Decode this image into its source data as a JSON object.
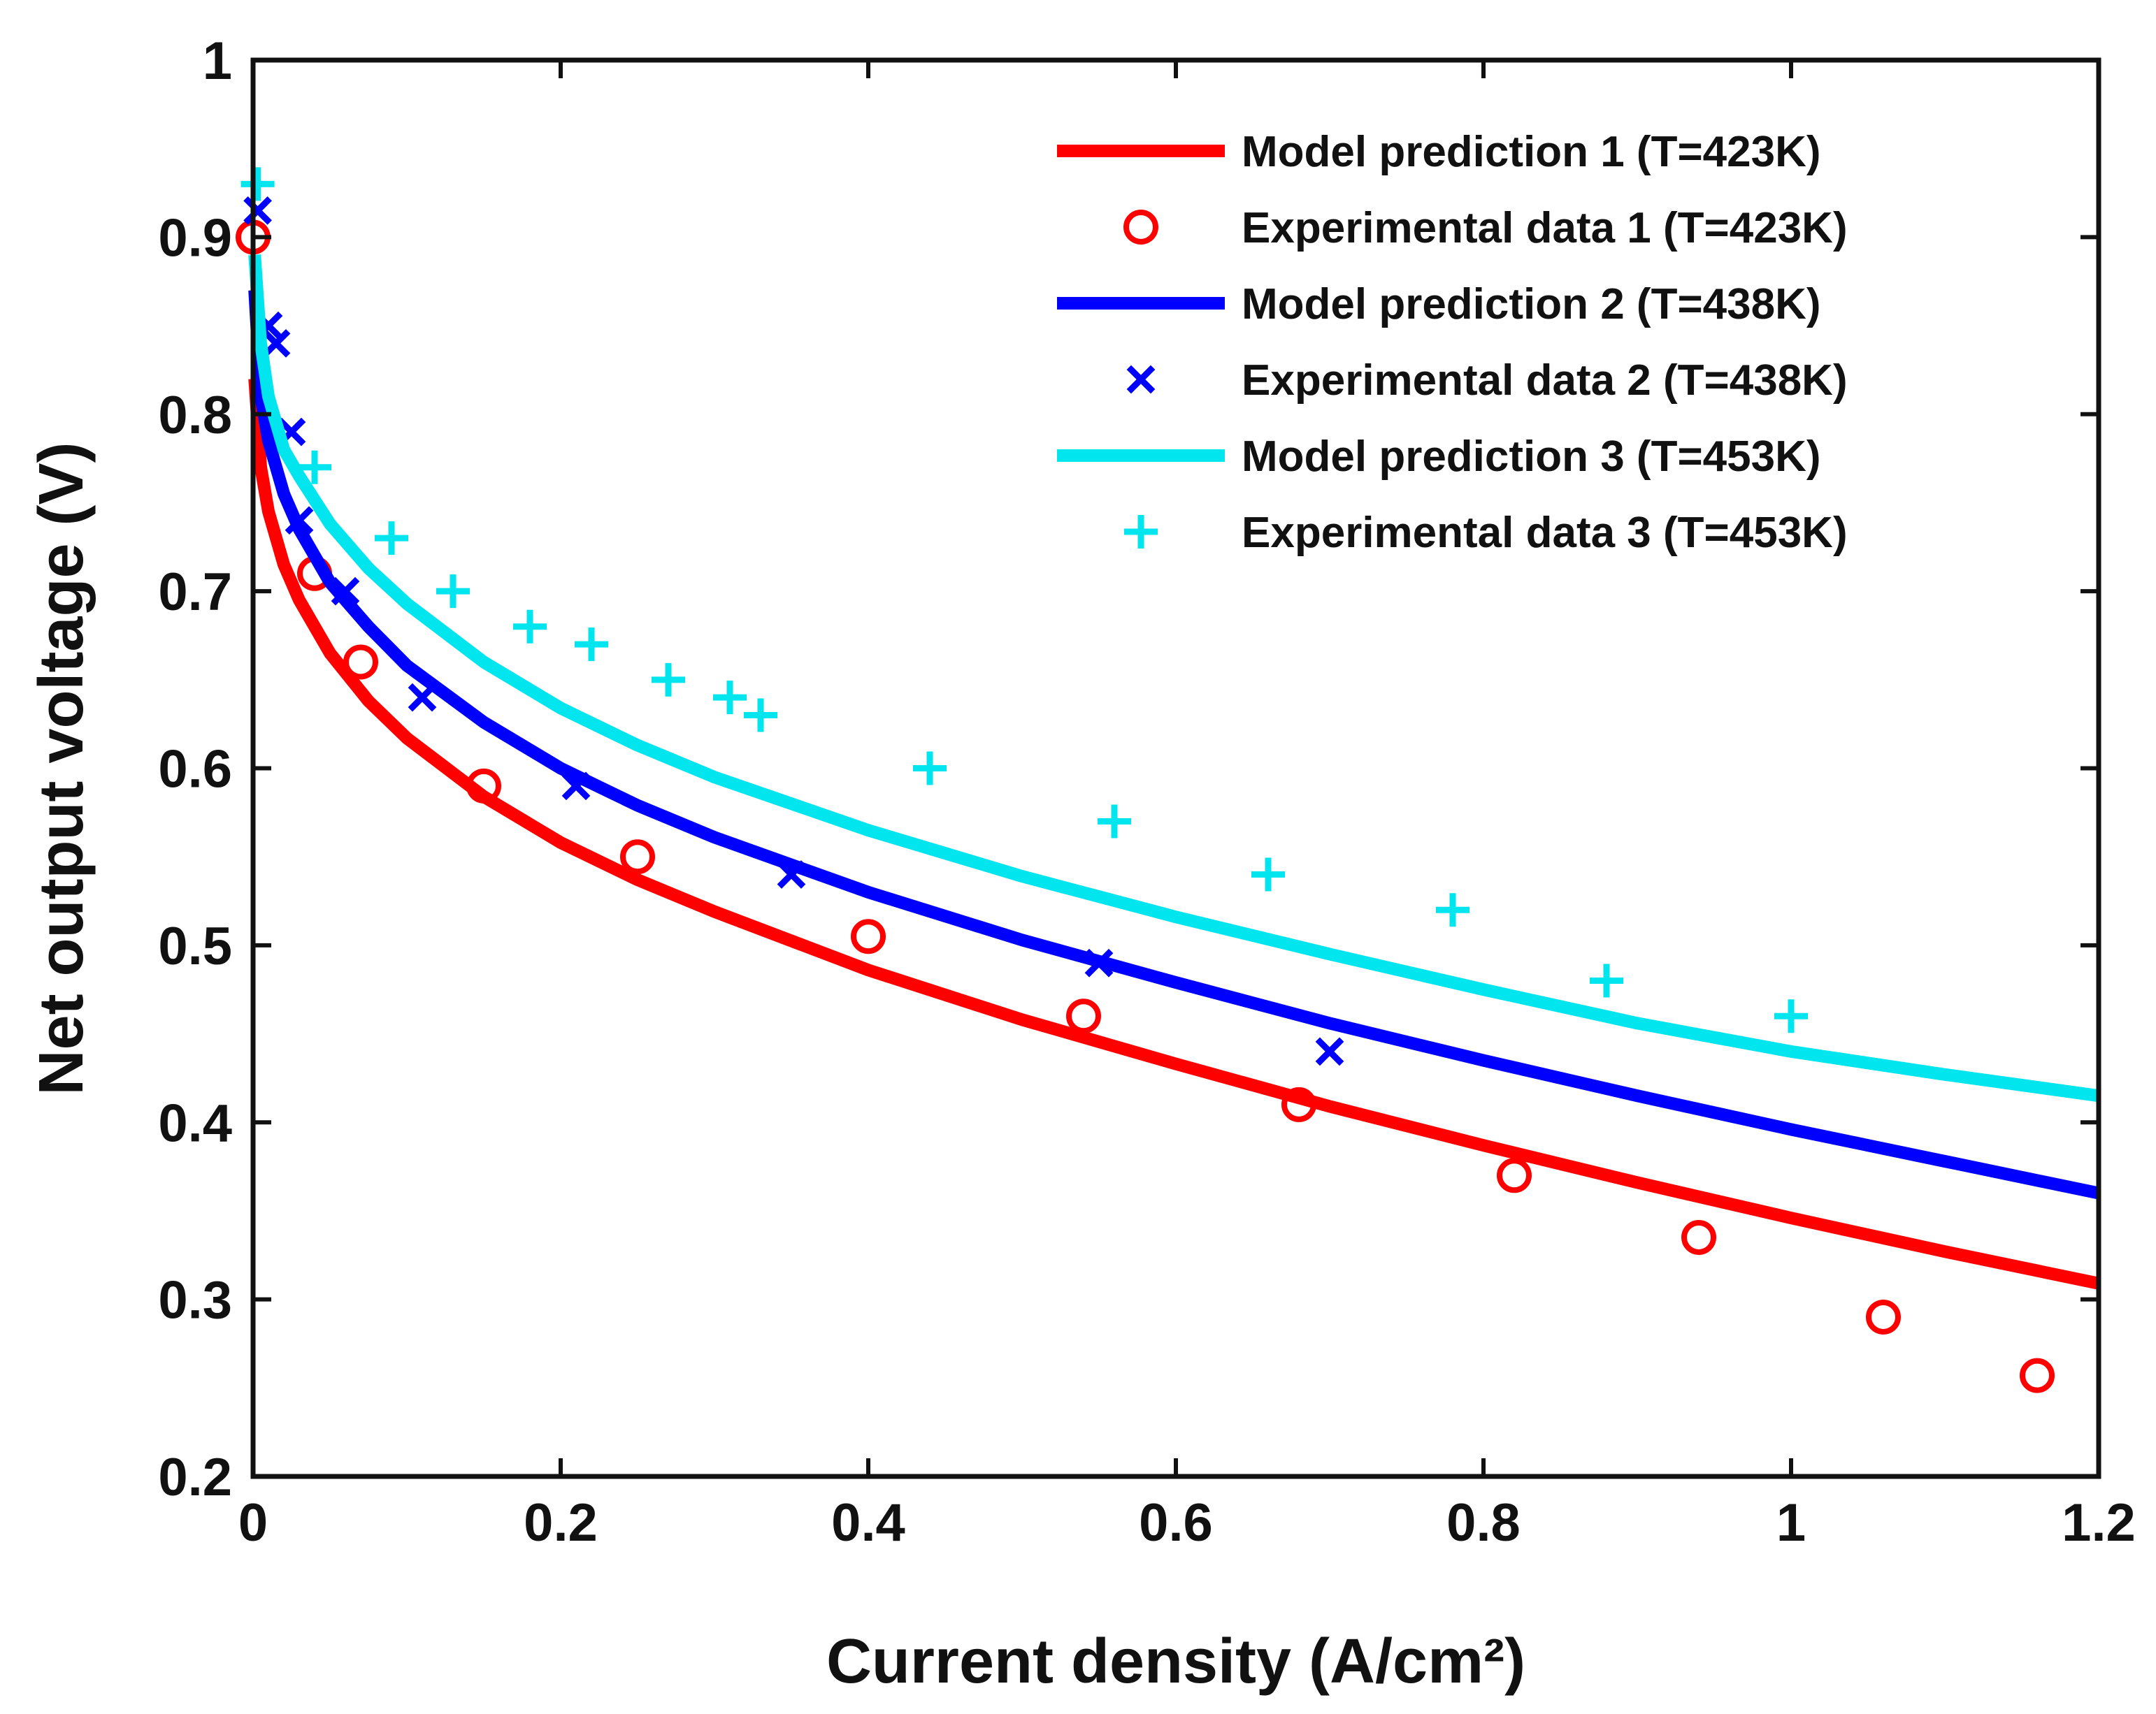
{
  "chart_data": {
    "type": "line",
    "title": "",
    "xlabel": "Current density (A/cm²)",
    "ylabel": "Net output voltage (V)",
    "xlim": [
      0,
      1.2
    ],
    "ylim": [
      0.2,
      1.0
    ],
    "xticks": [
      0,
      0.2,
      0.4,
      0.6,
      0.8,
      1,
      1.2
    ],
    "xtick_labels": [
      "0",
      "0.2",
      "0.4",
      "0.6",
      "0.8",
      "1",
      "1.2"
    ],
    "yticks": [
      0.2,
      0.3,
      0.4,
      0.5,
      0.6,
      0.7,
      0.8,
      0.9,
      1.0
    ],
    "ytick_labels": [
      "0.2",
      "0.3",
      "0.4",
      "0.5",
      "0.6",
      "0.7",
      "0.8",
      "0.9",
      "1"
    ],
    "grid": false,
    "legend_position": "top-right",
    "series": [
      {
        "name": "Model prediction 1 (T=423K)",
        "kind": "line",
        "color": "#ff0000",
        "x": [
          0.001,
          0.005,
          0.01,
          0.02,
          0.03,
          0.05,
          0.075,
          0.1,
          0.15,
          0.2,
          0.25,
          0.3,
          0.4,
          0.5,
          0.6,
          0.7,
          0.8,
          0.9,
          1.0,
          1.1,
          1.2
        ],
        "y": [
          0.82,
          0.77,
          0.745,
          0.715,
          0.695,
          0.665,
          0.638,
          0.617,
          0.584,
          0.558,
          0.537,
          0.519,
          0.486,
          0.458,
          0.433,
          0.409,
          0.387,
          0.366,
          0.346,
          0.327,
          0.309
        ]
      },
      {
        "name": "Experimental data 1 (T=423K)",
        "kind": "marker",
        "marker": "circle",
        "color": "#ff0000",
        "x": [
          0.0,
          0.04,
          0.07,
          0.15,
          0.25,
          0.4,
          0.54,
          0.68,
          0.82,
          0.94,
          1.06,
          1.16
        ],
        "y": [
          0.9,
          0.71,
          0.66,
          0.59,
          0.55,
          0.505,
          0.46,
          0.41,
          0.37,
          0.335,
          0.29,
          0.257
        ]
      },
      {
        "name": "Model prediction 2 (T=438K)",
        "kind": "line",
        "color": "#0000ff",
        "x": [
          0.001,
          0.005,
          0.01,
          0.02,
          0.03,
          0.05,
          0.075,
          0.1,
          0.15,
          0.2,
          0.25,
          0.3,
          0.4,
          0.5,
          0.6,
          0.7,
          0.8,
          0.9,
          1.0,
          1.1,
          1.2
        ],
        "y": [
          0.87,
          0.81,
          0.785,
          0.755,
          0.735,
          0.705,
          0.68,
          0.658,
          0.626,
          0.6,
          0.579,
          0.561,
          0.53,
          0.503,
          0.479,
          0.456,
          0.435,
          0.415,
          0.396,
          0.378,
          0.36
        ]
      },
      {
        "name": "Experimental data 2 (T=438K)",
        "kind": "marker",
        "marker": "x",
        "color": "#0000ff",
        "x": [
          0.003,
          0.01,
          0.015,
          0.025,
          0.03,
          0.06,
          0.11,
          0.21,
          0.35,
          0.55,
          0.7
        ],
        "y": [
          0.915,
          0.85,
          0.84,
          0.79,
          0.74,
          0.7,
          0.64,
          0.59,
          0.54,
          0.49,
          0.44
        ]
      },
      {
        "name": "Model prediction 3 (T=453K)",
        "kind": "line",
        "color": "#00e5ee",
        "x": [
          0.001,
          0.005,
          0.01,
          0.02,
          0.03,
          0.05,
          0.075,
          0.1,
          0.15,
          0.2,
          0.25,
          0.3,
          0.4,
          0.5,
          0.6,
          0.7,
          0.8,
          0.9,
          1.0,
          1.1,
          1.2
        ],
        "y": [
          0.89,
          0.84,
          0.81,
          0.78,
          0.765,
          0.738,
          0.713,
          0.693,
          0.66,
          0.634,
          0.613,
          0.595,
          0.565,
          0.539,
          0.516,
          0.495,
          0.475,
          0.456,
          0.44,
          0.427,
          0.415
        ]
      },
      {
        "name": "Experimental data 3 (T=453K)",
        "kind": "marker",
        "marker": "plus",
        "color": "#00e5ee",
        "x": [
          0.003,
          0.04,
          0.09,
          0.13,
          0.18,
          0.22,
          0.27,
          0.31,
          0.33,
          0.44,
          0.56,
          0.66,
          0.78,
          0.88,
          1.0
        ],
        "y": [
          0.93,
          0.77,
          0.73,
          0.7,
          0.68,
          0.67,
          0.65,
          0.64,
          0.63,
          0.6,
          0.57,
          0.54,
          0.52,
          0.48,
          0.46
        ]
      }
    ]
  }
}
